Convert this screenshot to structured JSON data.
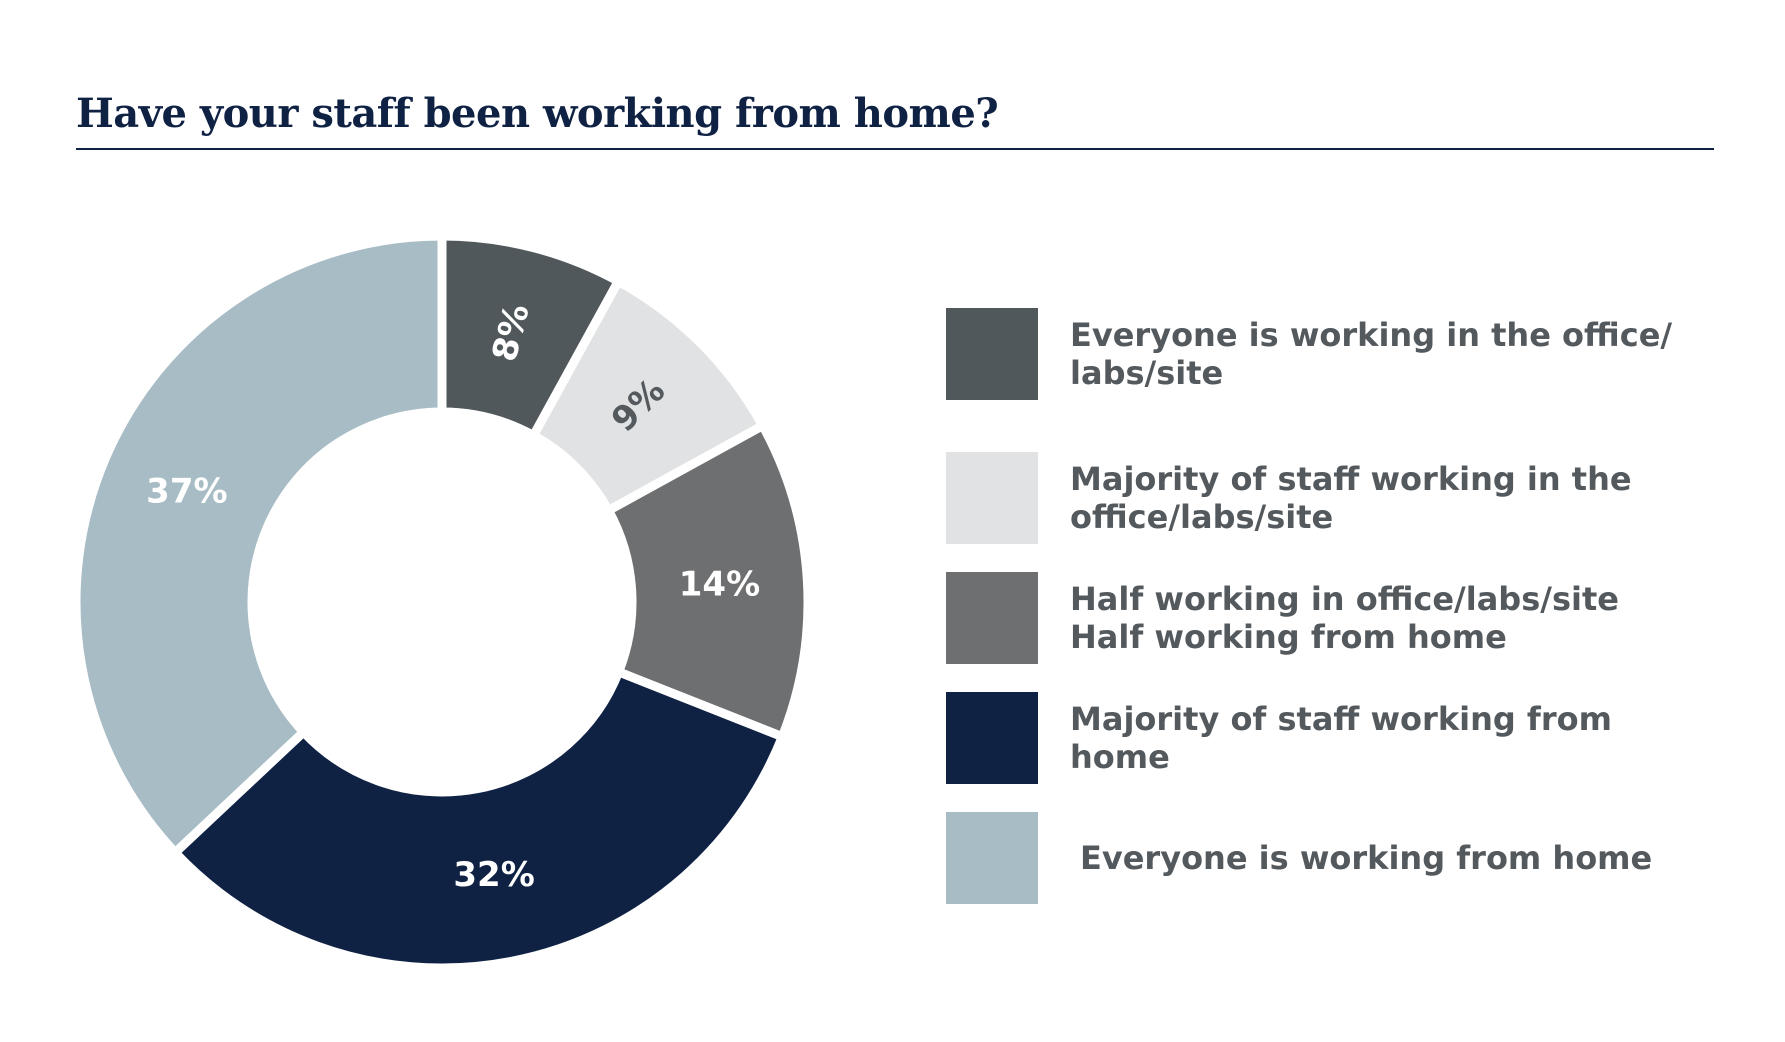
{
  "chart_data": {
    "type": "pie",
    "title": "Have your staff been working from home?",
    "categories": [
      "Everyone is working in the office/\nlabs/site",
      "Majority of staff working in the\noffice/labs/site",
      "Half working in office/labs/site\nHalf working from home",
      "Majority of staff working from\nhome",
      "Everyone is working from home"
    ],
    "values": [
      8,
      9,
      14,
      32,
      37
    ],
    "labels": [
      "8%",
      "9%",
      "14%",
      "32%",
      "37%"
    ],
    "colors": [
      "#51585b",
      "#e1e2e3",
      "#6e6f71",
      "#0f2244",
      "#a7bcc5"
    ],
    "label_colors": [
      "#ffffff",
      "#54595d",
      "#ffffff",
      "#ffffff",
      "#ffffff"
    ],
    "donut": true,
    "legend_position": "right"
  }
}
